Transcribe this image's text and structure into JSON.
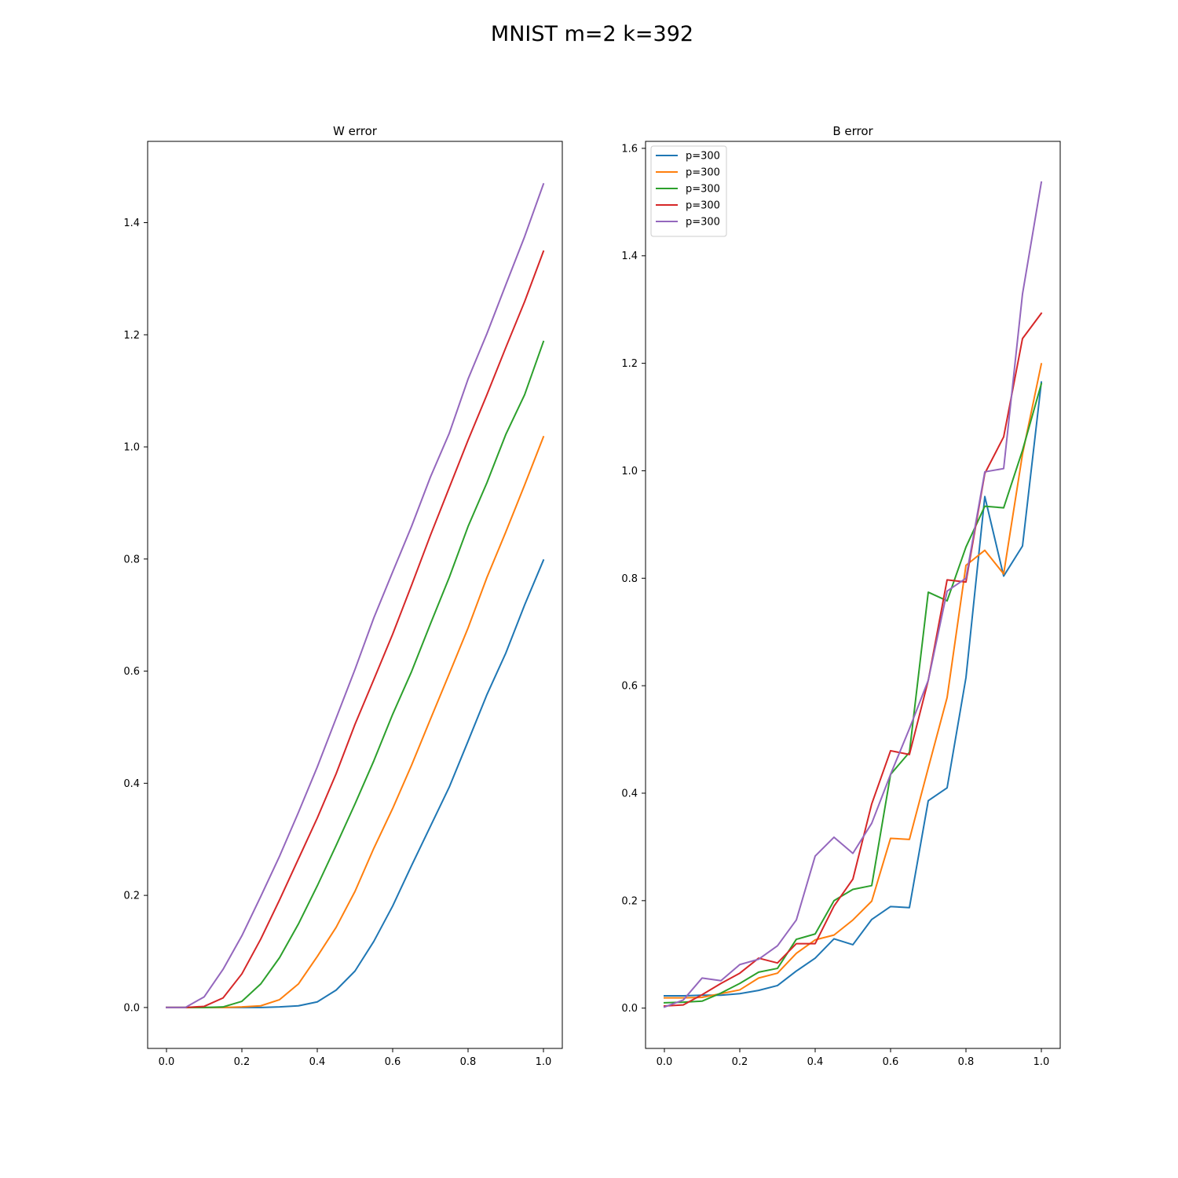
{
  "figure_title": "MNIST m=2 k=392",
  "chart_data": [
    {
      "type": "line",
      "title": "W error",
      "xlabel": "",
      "ylabel": "",
      "xlim": [
        -0.05,
        1.05
      ],
      "ylim": [
        -0.073,
        1.545
      ],
      "xticks": [
        0.0,
        0.2,
        0.4,
        0.6,
        0.8,
        1.0
      ],
      "xtick_labels": [
        "0.0",
        "0.2",
        "0.4",
        "0.6",
        "0.8",
        "1.0"
      ],
      "yticks": [
        0.0,
        0.2,
        0.4,
        0.6,
        0.8,
        1.0,
        1.2,
        1.4
      ],
      "ytick_labels": [
        "0.0",
        "0.2",
        "0.4",
        "0.6",
        "0.8",
        "1.0",
        "1.2",
        "1.4"
      ],
      "grid": false,
      "legend": null,
      "x": [
        0.0,
        0.05,
        0.1,
        0.15,
        0.2,
        0.25,
        0.3,
        0.35,
        0.4,
        0.45,
        0.5,
        0.55,
        0.6,
        0.65,
        0.7,
        0.75,
        0.8,
        0.85,
        0.9,
        0.95,
        1.0
      ],
      "series": [
        {
          "color": "#1f77b4",
          "values": [
            0.0,
            0.0,
            0.0,
            0.0,
            0.0,
            0.0,
            0.001,
            0.003,
            0.01,
            0.031,
            0.065,
            0.118,
            0.181,
            0.253,
            0.323,
            0.393,
            0.475,
            0.558,
            0.632,
            0.718,
            0.798
          ]
        },
        {
          "color": "#ff7f0e",
          "values": [
            0.0,
            0.0,
            0.0,
            0.0,
            0.001,
            0.003,
            0.014,
            0.042,
            0.091,
            0.143,
            0.207,
            0.284,
            0.355,
            0.432,
            0.514,
            0.595,
            0.677,
            0.767,
            0.848,
            0.932,
            1.018
          ]
        },
        {
          "color": "#2ca02c",
          "values": [
            0.0,
            0.0,
            0.0,
            0.001,
            0.011,
            0.042,
            0.089,
            0.149,
            0.217,
            0.289,
            0.363,
            0.44,
            0.523,
            0.599,
            0.684,
            0.767,
            0.858,
            0.936,
            1.022,
            1.093,
            1.188
          ]
        },
        {
          "color": "#d62728",
          "values": [
            0.0,
            0.0,
            0.002,
            0.017,
            0.06,
            0.122,
            0.192,
            0.265,
            0.338,
            0.417,
            0.505,
            0.585,
            0.666,
            0.753,
            0.842,
            0.927,
            1.012,
            1.093,
            1.177,
            1.259,
            1.349
          ]
        },
        {
          "color": "#9467bd",
          "values": [
            0.0,
            0.0,
            0.019,
            0.068,
            0.128,
            0.198,
            0.27,
            0.348,
            0.429,
            0.516,
            0.603,
            0.695,
            0.777,
            0.858,
            0.946,
            1.024,
            1.121,
            1.202,
            1.289,
            1.375,
            1.469
          ]
        }
      ]
    },
    {
      "type": "line",
      "title": "B error",
      "xlabel": "",
      "ylabel": "",
      "xlim": [
        -0.05,
        1.05
      ],
      "ylim": [
        -0.075,
        1.613
      ],
      "xticks": [
        0.0,
        0.2,
        0.4,
        0.6,
        0.8,
        1.0
      ],
      "xtick_labels": [
        "0.0",
        "0.2",
        "0.4",
        "0.6",
        "0.8",
        "1.0"
      ],
      "yticks": [
        0.0,
        0.2,
        0.4,
        0.6,
        0.8,
        1.0,
        1.2,
        1.4,
        1.6
      ],
      "ytick_labels": [
        "0.0",
        "0.2",
        "0.4",
        "0.6",
        "0.8",
        "1.0",
        "1.2",
        "1.4",
        "1.6"
      ],
      "grid": false,
      "legend": "upper left",
      "x": [
        0.0,
        0.05,
        0.1,
        0.15,
        0.2,
        0.25,
        0.3,
        0.35,
        0.4,
        0.45,
        0.5,
        0.55,
        0.6,
        0.65,
        0.7,
        0.75,
        0.8,
        0.85,
        0.9,
        0.95,
        1.0
      ],
      "series": [
        {
          "name": "p=300",
          "color": "#1f77b4",
          "values": [
            0.023,
            0.023,
            0.024,
            0.024,
            0.027,
            0.033,
            0.042,
            0.069,
            0.093,
            0.129,
            0.118,
            0.165,
            0.189,
            0.187,
            0.386,
            0.41,
            0.615,
            0.952,
            0.804,
            0.86,
            1.165
          ]
        },
        {
          "name": "p=300",
          "color": "#ff7f0e",
          "values": [
            0.019,
            0.019,
            0.02,
            0.027,
            0.034,
            0.056,
            0.065,
            0.102,
            0.127,
            0.136,
            0.164,
            0.199,
            0.316,
            0.314,
            0.447,
            0.578,
            0.824,
            0.852,
            0.808,
            1.031,
            1.199
          ]
        },
        {
          "name": "p=300",
          "color": "#2ca02c",
          "values": [
            0.01,
            0.011,
            0.013,
            0.028,
            0.046,
            0.067,
            0.074,
            0.128,
            0.138,
            0.2,
            0.221,
            0.228,
            0.435,
            0.476,
            0.774,
            0.758,
            0.858,
            0.934,
            0.931,
            1.038,
            1.162
          ]
        },
        {
          "name": "p=300",
          "color": "#d62728",
          "values": [
            0.004,
            0.006,
            0.025,
            0.046,
            0.065,
            0.093,
            0.084,
            0.12,
            0.12,
            0.19,
            0.24,
            0.38,
            0.479,
            0.472,
            0.61,
            0.797,
            0.793,
            0.995,
            1.063,
            1.246,
            1.293
          ]
        },
        {
          "name": "p=300",
          "color": "#9467bd",
          "values": [
            0.002,
            0.015,
            0.056,
            0.051,
            0.081,
            0.091,
            0.116,
            0.164,
            0.283,
            0.318,
            0.288,
            0.344,
            0.435,
            0.52,
            0.61,
            0.776,
            0.8,
            0.998,
            1.004,
            1.329,
            1.537
          ]
        }
      ]
    }
  ]
}
